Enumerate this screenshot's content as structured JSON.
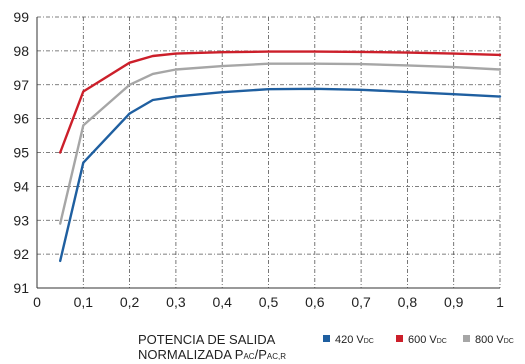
{
  "chart_data": {
    "type": "line",
    "x_ticks": [
      "0",
      "0,1",
      "0,2",
      "0,3",
      "0,4",
      "0,5",
      "0,6",
      "0,7",
      "0,8",
      "0,9",
      "1"
    ],
    "y_ticks": [
      "91",
      "92",
      "93",
      "94",
      "95",
      "96",
      "97",
      "98",
      "99"
    ],
    "xlim": [
      0,
      1
    ],
    "ylim": [
      91,
      99
    ],
    "grid": true,
    "legend_placement": "bottom",
    "xlabel_line1": "POTENCIA DE SALIDA",
    "xlabel_line2_main": "NORMALIZADA P",
    "xlabel_sub1": "AC",
    "xlabel_slash": "/P",
    "xlabel_sub2": "AC,R",
    "series": [
      {
        "name": "420 V",
        "unit_sub": "DC",
        "color": "#1f5fa0",
        "x": [
          0.05,
          0.1,
          0.2,
          0.25,
          0.3,
          0.4,
          0.5,
          0.6,
          0.7,
          0.8,
          0.9,
          1.0
        ],
        "y": [
          91.8,
          94.7,
          96.15,
          96.55,
          96.65,
          96.78,
          96.87,
          96.88,
          96.85,
          96.79,
          96.72,
          96.65
        ]
      },
      {
        "name": "600 V",
        "unit_sub": "DC",
        "color": "#cc1f2a",
        "x": [
          0.05,
          0.1,
          0.2,
          0.25,
          0.3,
          0.4,
          0.5,
          0.6,
          0.7,
          0.8,
          0.9,
          1.0
        ],
        "y": [
          95.0,
          96.8,
          97.65,
          97.85,
          97.92,
          97.96,
          97.98,
          97.98,
          97.97,
          97.95,
          97.92,
          97.88
        ]
      },
      {
        "name": "800 V",
        "unit_sub": "DC",
        "color": "#a6a6a6",
        "x": [
          0.05,
          0.1,
          0.2,
          0.25,
          0.3,
          0.4,
          0.5,
          0.6,
          0.7,
          0.8,
          0.9,
          1.0
        ],
        "y": [
          92.9,
          95.8,
          97.0,
          97.32,
          97.45,
          97.55,
          97.62,
          97.62,
          97.61,
          97.57,
          97.52,
          97.45
        ]
      }
    ]
  }
}
